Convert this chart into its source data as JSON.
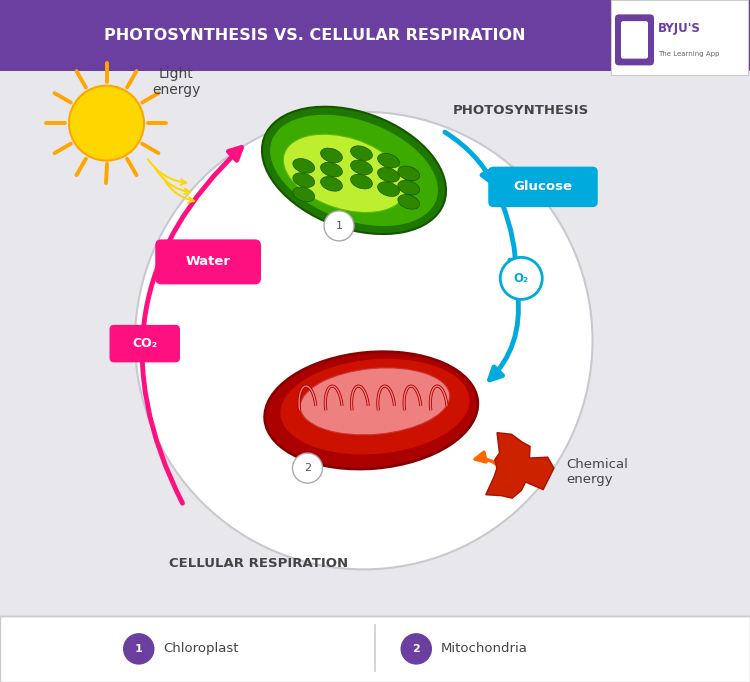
{
  "title": "PHOTOSYNTHESIS VS. CELLULAR RESPIRATION",
  "title_bg": "#6B3FA0",
  "title_color": "#FFFFFF",
  "bg_color": "#E8E8EC",
  "circle_facecolor": "#F0F0F5",
  "circle_edgecolor": "#C8C8D0",
  "label_photosynthesis": "PHOTOSYNTHESIS",
  "label_cellular": "CELLULAR RESPIRATION",
  "label_light": "Light\nenergy",
  "label_water": "Water",
  "label_co2": "CO₂",
  "label_glucose": "Glucose",
  "label_o2": "O₂",
  "label_chemical": "Chemical\nenergy",
  "arrow_pink": "#FF1080",
  "arrow_blue": "#00AADD",
  "arrow_orange": "#FF6600",
  "water_pill_color": "#FF1080",
  "glucose_pill_color": "#00AADD",
  "o2_text_color": "#00AADD",
  "co2_text_color": "#FF1080",
  "legend1": "Chloroplast",
  "legend2": "Mitochondria",
  "legend_num_color": "#6B3FA0",
  "legend_bg": "#FFFFFF",
  "legend_line": "#CCCCCC",
  "sun_body": "#FFD700",
  "sun_rays": "#FFA500",
  "chloro_outer": "#2D7A00",
  "chloro_mid": "#5CB800",
  "chloro_inner": "#C8F000",
  "chloro_stack": "#3A9000",
  "mito_outer": "#CC1100",
  "mito_mid": "#EE3300",
  "mito_inner": "#FFB0A0",
  "chemical_blob": "#CC2200",
  "byju_purple": "#6B3FA0",
  "text_dark": "#444444"
}
